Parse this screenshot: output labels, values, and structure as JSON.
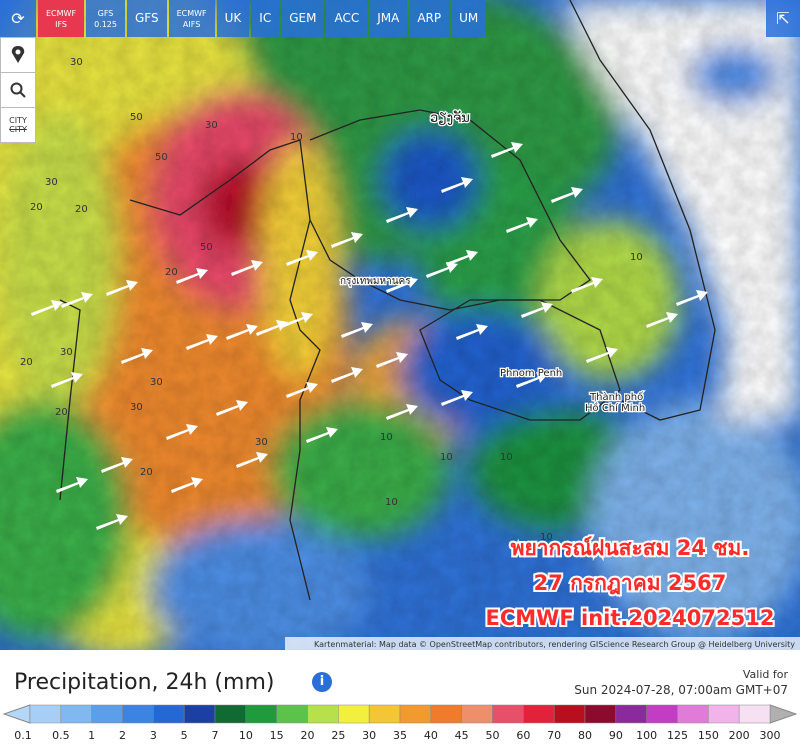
{
  "toolbar": {
    "models": [
      {
        "label": "ECMWF",
        "sub": "IFS",
        "active": true
      },
      {
        "label": "GFS",
        "sub": "0.125"
      },
      {
        "label": "GFS"
      },
      {
        "label": "ECMWF",
        "sub": "AIFS"
      },
      {
        "label": "UK"
      },
      {
        "label": "IC"
      },
      {
        "label": "GEM"
      },
      {
        "label": "ACC"
      },
      {
        "label": "JMA"
      },
      {
        "label": "ARP"
      },
      {
        "label": "UM"
      }
    ]
  },
  "side_buttons": {
    "city": "CITY",
    "city_off": "CITY"
  },
  "map": {
    "overlay_lines": [
      "พยากรณ์ฝนสะสม 24 ชม.",
      "27 กรกฎาคม 2567",
      "ECMWF init.2024072512"
    ],
    "places": [
      "ວຽງຈັນ",
      "กรุงเทพมหานคร",
      "Phnom Penh",
      "Thành phố",
      "Hồ Chí Minh"
    ],
    "contour_labels": [
      "30",
      "30",
      "50",
      "30",
      "20",
      "20",
      "20",
      "30",
      "50",
      "30",
      "30",
      "20",
      "10",
      "10",
      "10",
      "10",
      "10",
      "10",
      "20",
      "30",
      "20",
      "10",
      "50"
    ],
    "attribution": "Kartenmaterial: Map data © OpenStreetMap contributors, rendering GIScience Research Group @ Heidelberg University"
  },
  "legend": {
    "title": "Precipitation, 24h (mm)",
    "info": "i",
    "valid_label": "Valid for",
    "valid_time": "Sun 2024-07-28, 07:00am GMT+07",
    "ticks": [
      0.1,
      0.5,
      1,
      2,
      3,
      5,
      7,
      10,
      15,
      20,
      25,
      30,
      35,
      40,
      45,
      50,
      60,
      70,
      80,
      90,
      100,
      125,
      150,
      200,
      300
    ],
    "under_color": "#b5d7f7",
    "over_color": "#b0b0b0",
    "colors": [
      "#a7cff6",
      "#82b8f1",
      "#5b9eea",
      "#3b84e2",
      "#2468d6",
      "#1b3fa2",
      "#0f6b32",
      "#1f9a3c",
      "#5cc34a",
      "#b7e14b",
      "#f2ef3f",
      "#f4c536",
      "#f29a2e",
      "#f07c2b",
      "#ef8e6a",
      "#e8506a",
      "#e0233a",
      "#b80f1f",
      "#8c0a2e",
      "#8a2a9c",
      "#c23cc4",
      "#e27ad8",
      "#f1b3ea",
      "#f6e1f2"
    ]
  }
}
